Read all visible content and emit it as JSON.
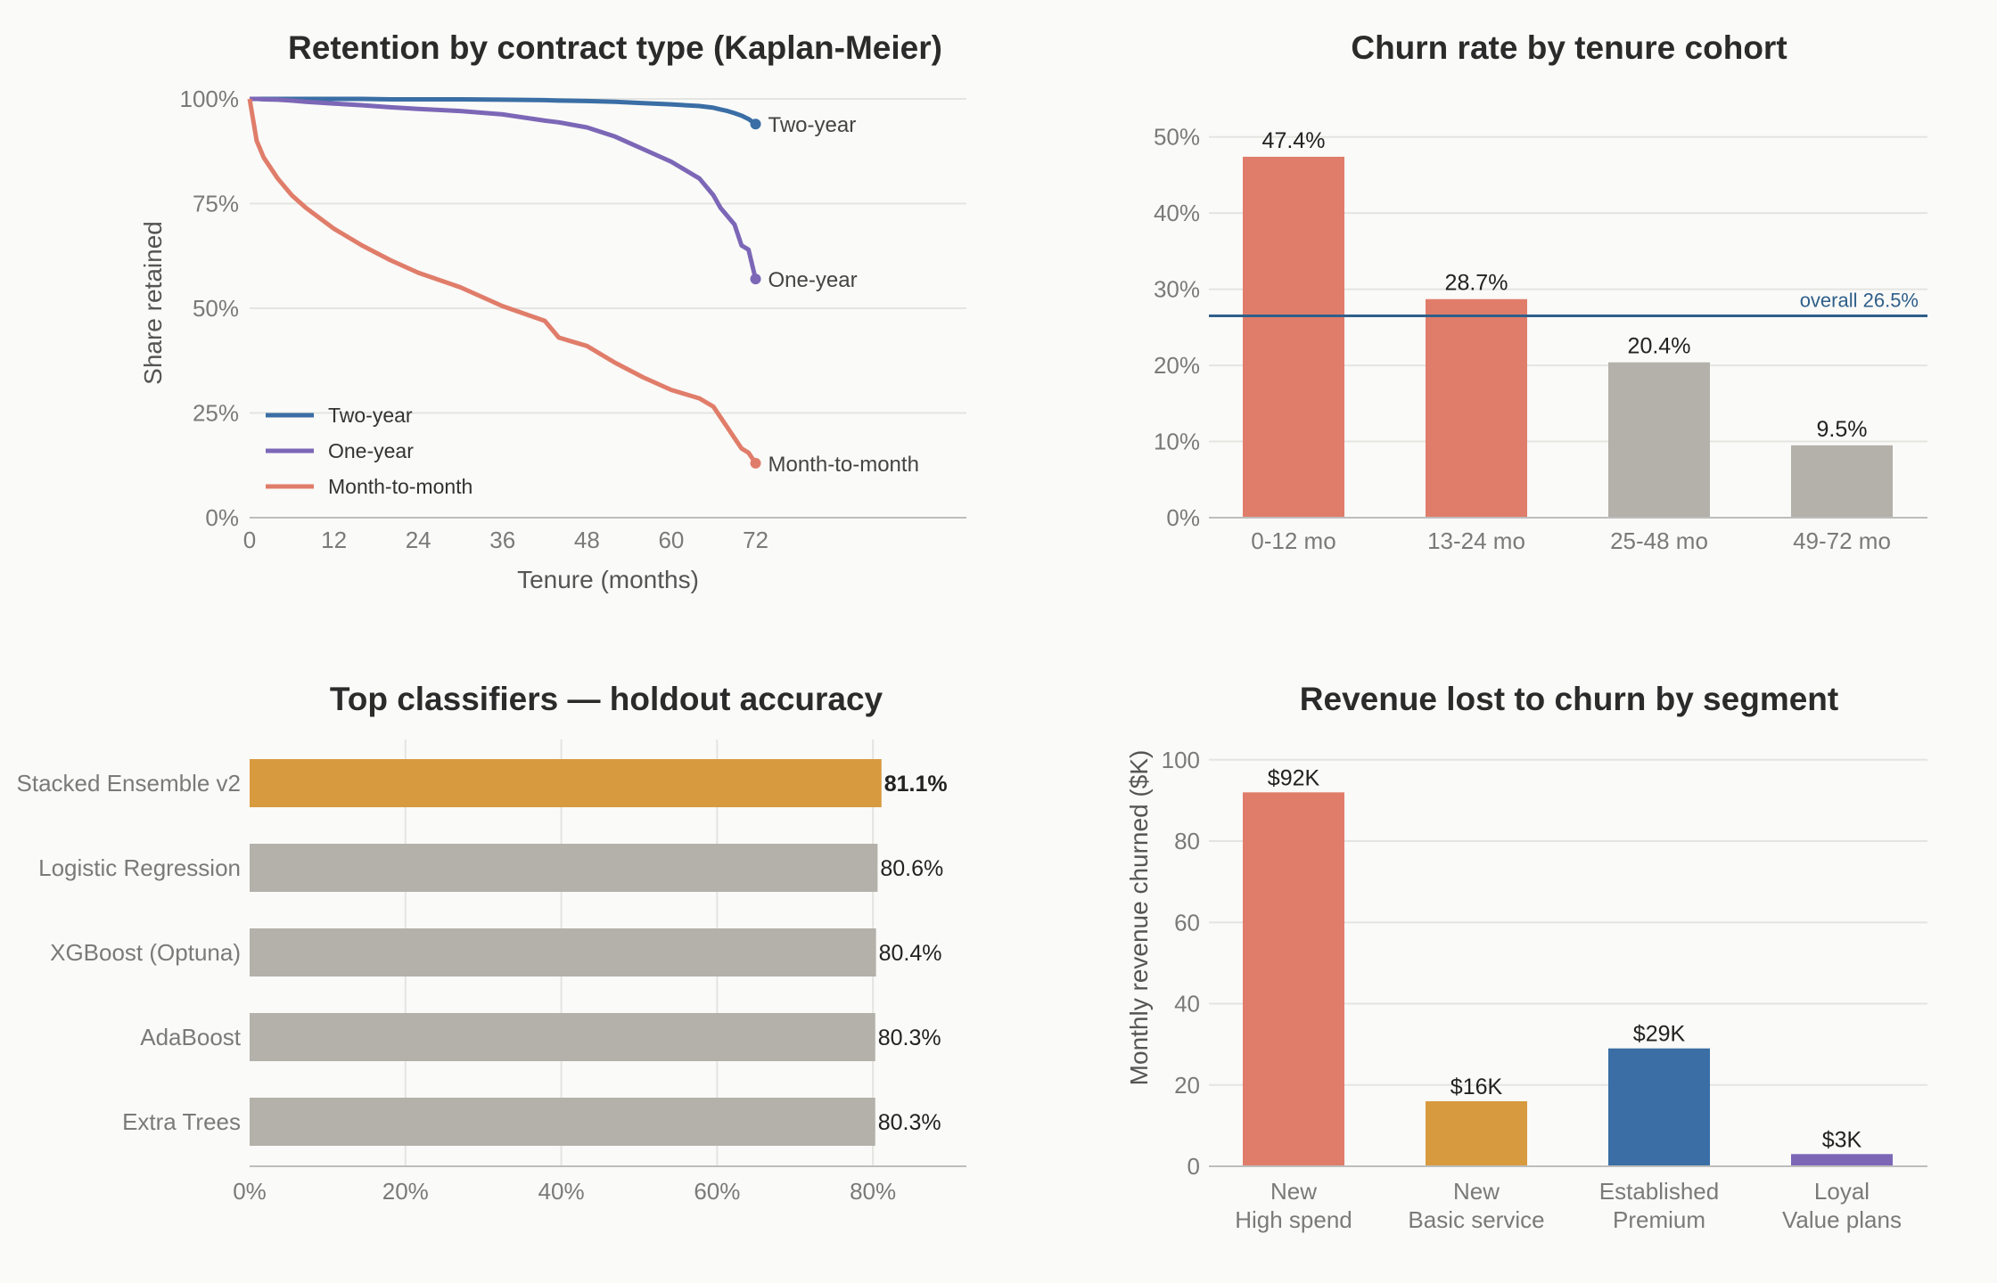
{
  "chart_data": [
    {
      "type": "line",
      "title": "Retention by contract type (Kaplan-Meier)",
      "xlabel": "Tenure (months)",
      "ylabel": "Share retained",
      "xticks": [
        "0",
        "12",
        "24",
        "36",
        "48",
        "60",
        "72"
      ],
      "yticks": [
        "0%",
        "25%",
        "50%",
        "75%",
        "100%"
      ],
      "xlim": [
        0,
        102
      ],
      "ylim": [
        0,
        1
      ],
      "legend": "bottom-left",
      "x": [
        0,
        1,
        2,
        4,
        6,
        8,
        12,
        16,
        20,
        24,
        30,
        36,
        42,
        44,
        48,
        52,
        56,
        60,
        62,
        64,
        66,
        67,
        68,
        69,
        70,
        71,
        72
      ],
      "series": [
        {
          "name": "Two-year",
          "color": "#3a6ea5",
          "values": [
            1.0,
            1.0,
            1.0,
            1.0,
            1.0,
            1.0,
            1.0,
            1.0,
            0.999,
            0.999,
            0.999,
            0.998,
            0.997,
            0.996,
            0.995,
            0.993,
            0.99,
            0.987,
            0.985,
            0.983,
            0.979,
            0.975,
            0.971,
            0.966,
            0.96,
            0.952,
            0.94
          ]
        },
        {
          "name": "One-year",
          "color": "#7c67b7",
          "values": [
            1.0,
            1.0,
            0.999,
            0.998,
            0.996,
            0.993,
            0.989,
            0.985,
            0.98,
            0.976,
            0.971,
            0.963,
            0.948,
            0.944,
            0.932,
            0.91,
            0.88,
            0.85,
            0.83,
            0.81,
            0.77,
            0.74,
            0.72,
            0.7,
            0.65,
            0.64,
            0.57
          ]
        },
        {
          "name": "Month-to-month",
          "color": "#e07d6a",
          "values": [
            1.0,
            0.9,
            0.86,
            0.81,
            0.77,
            0.74,
            0.69,
            0.65,
            0.615,
            0.585,
            0.55,
            0.505,
            0.47,
            0.43,
            0.41,
            0.37,
            0.335,
            0.305,
            0.295,
            0.285,
            0.265,
            0.24,
            0.215,
            0.19,
            0.165,
            0.155,
            0.13
          ]
        }
      ]
    },
    {
      "type": "bar",
      "title": "Churn rate by tenure cohort",
      "categories": [
        "0-12 mo",
        "13-24 mo",
        "25-48 mo",
        "49-72 mo"
      ],
      "values": [
        47.4,
        28.7,
        20.4,
        9.5
      ],
      "value_labels": [
        "47.4%",
        "28.7%",
        "20.4%",
        "9.5%"
      ],
      "colors": [
        "#e07d6a",
        "#e07d6a",
        "#b4b0aa",
        "#b4b0aa"
      ],
      "ylim": [
        0,
        55
      ],
      "yticks": [
        "0%",
        "10%",
        "20%",
        "30%",
        "40%",
        "50%"
      ],
      "reference_line": {
        "value": 26.5,
        "label": "overall 26.5%",
        "color": "#2f5f8a"
      }
    },
    {
      "type": "bar",
      "orientation": "horizontal",
      "title": "Top classifiers — holdout accuracy",
      "categories": [
        "Stacked Ensemble v2",
        "Logistic Regression",
        "XGBoost (Optuna)",
        "AdaBoost",
        "Extra Trees"
      ],
      "values": [
        81.1,
        80.6,
        80.4,
        80.3,
        80.3
      ],
      "value_labels": [
        "81.1%",
        "80.6%",
        "80.4%",
        "80.3%",
        "80.3%"
      ],
      "colors": [
        "#d89a3e",
        "#b4b0aa",
        "#b4b0aa",
        "#b4b0aa",
        "#b4b0aa"
      ],
      "xlim": [
        0,
        92
      ],
      "xticks": [
        "0%",
        "20%",
        "40%",
        "60%",
        "80%"
      ]
    },
    {
      "type": "bar",
      "title": "Revenue lost to churn by segment",
      "ylabel": "Monthly revenue churned ($K)",
      "categories": [
        [
          "New",
          "High spend"
        ],
        [
          "New",
          "Basic service"
        ],
        [
          "Established",
          "Premium"
        ],
        [
          "Loyal",
          "Value plans"
        ]
      ],
      "values": [
        92,
        16,
        29,
        3
      ],
      "value_labels": [
        "$92K",
        "$16K",
        "$29K",
        "$3K"
      ],
      "colors": [
        "#e07d6a",
        "#d89a3e",
        "#3a6ea5",
        "#7c67b7"
      ],
      "ylim": [
        0,
        105
      ],
      "yticks": [
        "0",
        "20",
        "40",
        "60",
        "80",
        "100"
      ]
    }
  ]
}
